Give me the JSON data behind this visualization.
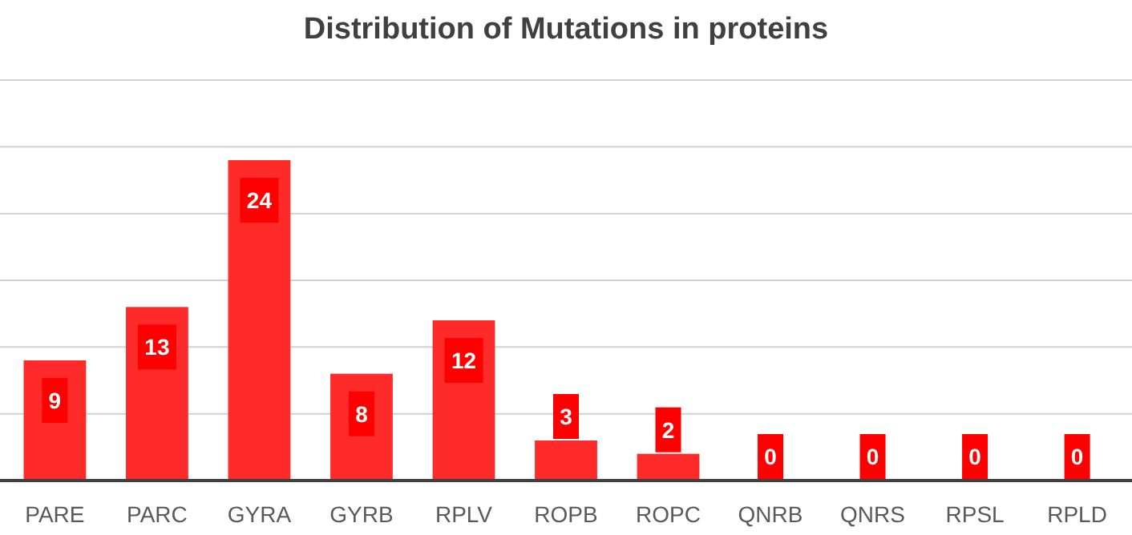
{
  "chart_data": {
    "type": "bar",
    "title": "Distribution of Mutations in proteins",
    "categories": [
      "PARE",
      "PARC",
      "GYRA",
      "GYRB",
      "RPLV",
      "ROPB",
      "ROPC",
      "QNRB",
      "QNRS",
      "RPSL",
      "RPLD"
    ],
    "values": [
      9,
      13,
      24,
      8,
      12,
      3,
      2,
      0,
      0,
      0,
      0
    ],
    "color": "#ff2b2b",
    "ylim": [
      0,
      30
    ],
    "yticks": [
      {
        "value": 0,
        "label": null
      },
      {
        "value": 5,
        "label": null
      },
      {
        "value": 10,
        "label": null
      },
      {
        "value": 15,
        "label": null
      },
      {
        "value": 20,
        "label": null
      },
      {
        "value": 25,
        "label": null
      },
      {
        "value": 30,
        "label": null
      }
    ],
    "grid": true,
    "data_labels": true,
    "tick_labels": "x"
  }
}
